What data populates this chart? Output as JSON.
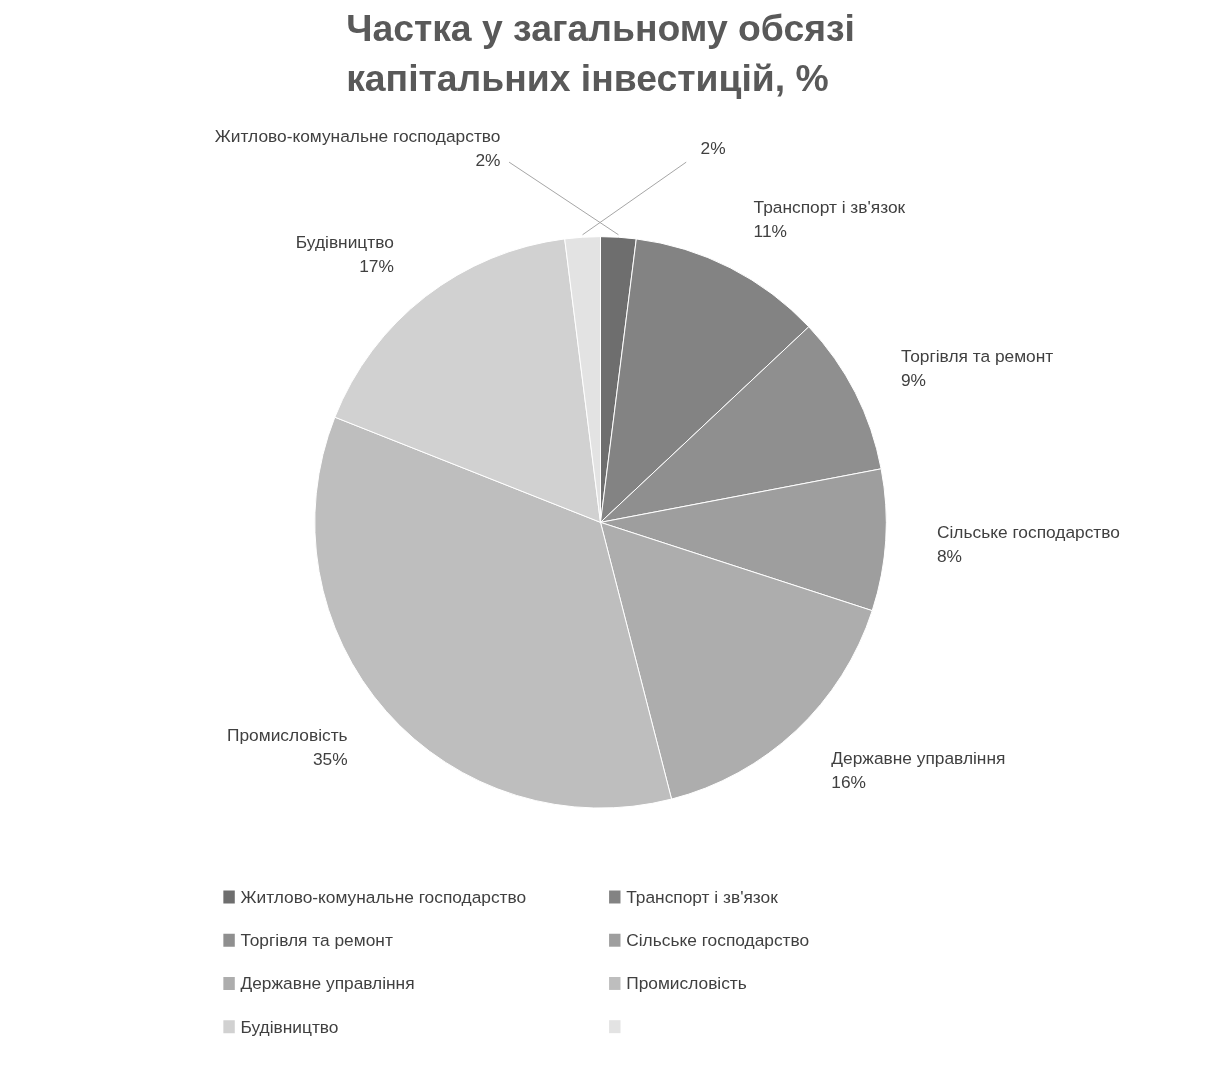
{
  "chart_data": {
    "type": "pie",
    "title": "Частка у загальному обсязі капітальних інвестицій, %",
    "categories": [
      "Житлово-комунальне господарство",
      "Транспорт і зв'язок",
      "Торгівля та ремонт",
      "Сільське господарство",
      "Державне управління",
      "Промисловість",
      "Будівництво",
      null
    ],
    "values": [
      2,
      11,
      9,
      8,
      16,
      35,
      17,
      2
    ],
    "colors": [
      "#6e6e6e",
      "#838383",
      "#8f8f8f",
      "#9e9e9e",
      "#adadad",
      "#bebebe",
      "#d1d1d1",
      "#e3e3e3"
    ],
    "value_labels": [
      "2%",
      "11%",
      "9%",
      "8%",
      "16%",
      "35%",
      "17%",
      "2%"
    ],
    "legend": "bottom"
  }
}
